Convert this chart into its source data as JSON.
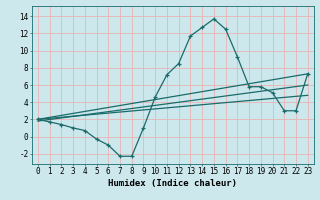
{
  "xlabel": "Humidex (Indice chaleur)",
  "ylabel": "",
  "bg_color": "#cce8ec",
  "grid_color": "#e8b4b4",
  "line_color": "#1a6b6b",
  "x_data": [
    0,
    1,
    2,
    3,
    4,
    5,
    6,
    7,
    8,
    9,
    10,
    11,
    12,
    13,
    14,
    15,
    16,
    17,
    18,
    19,
    20,
    21,
    22,
    23
  ],
  "y_data": [
    2.0,
    1.7,
    1.4,
    1.0,
    0.7,
    -0.3,
    -1.0,
    -2.3,
    -2.3,
    1.0,
    4.6,
    7.2,
    8.5,
    11.7,
    12.7,
    13.7,
    12.5,
    9.3,
    5.8,
    5.8,
    5.1,
    3.0,
    3.0,
    7.3
  ],
  "trend_lines": [
    {
      "x0": 0,
      "y0": 2.0,
      "x1": 23,
      "y1": 7.3
    },
    {
      "x0": 0,
      "y0": 1.8,
      "x1": 23,
      "y1": 6.0
    },
    {
      "x0": 0,
      "y0": 2.0,
      "x1": 23,
      "y1": 4.8
    }
  ],
  "ylim": [
    -3.2,
    15.2
  ],
  "xlim": [
    -0.5,
    23.5
  ],
  "yticks": [
    -2,
    0,
    2,
    4,
    6,
    8,
    10,
    12,
    14
  ],
  "xticks": [
    0,
    1,
    2,
    3,
    4,
    5,
    6,
    7,
    8,
    9,
    10,
    11,
    12,
    13,
    14,
    15,
    16,
    17,
    18,
    19,
    20,
    21,
    22,
    23
  ],
  "xlabel_fontsize": 6.5,
  "tick_fontsize": 5.5
}
